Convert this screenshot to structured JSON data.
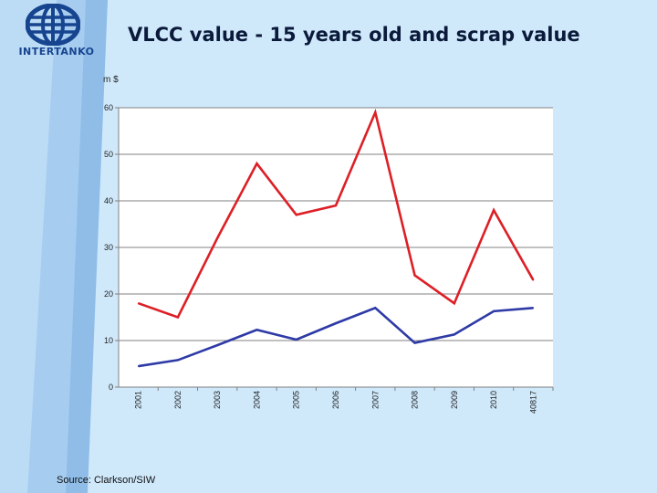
{
  "header": {
    "logo_text": "INTERTANKO",
    "title": "VLCC value - 15 years old and scrap value"
  },
  "source": "Source: Clarkson/SIW",
  "colors": {
    "background": "#cfe9fb",
    "stripe_light": "#bcdcf6",
    "stripe_dark": "#8fbde8",
    "logo": "#17448f",
    "series_15yr": "#dd1f26",
    "series_scrap": "#2e3aa6",
    "plot_area": "#ffffff"
  },
  "chart_data": {
    "type": "line",
    "title": "",
    "ylabel": "m $",
    "xlabel": "",
    "categories": [
      "2001",
      "2002",
      "2003",
      "2004",
      "2005",
      "2006",
      "2007",
      "2008",
      "2009",
      "2010",
      "40817"
    ],
    "ylim": [
      0,
      60
    ],
    "yticks": [
      0,
      10,
      20,
      30,
      40,
      50,
      60
    ],
    "grid": true,
    "legend": "none",
    "series": [
      {
        "values": [
          18,
          15,
          32,
          48,
          37,
          39,
          59,
          24,
          18,
          38,
          23
        ],
        "color": "#dd1f26"
      },
      {
        "values": [
          4.5,
          5.8,
          9,
          12.3,
          10.2,
          13.7,
          17,
          9.5,
          11.3,
          16.3,
          17
        ],
        "color": "#2e3aa6"
      }
    ]
  }
}
